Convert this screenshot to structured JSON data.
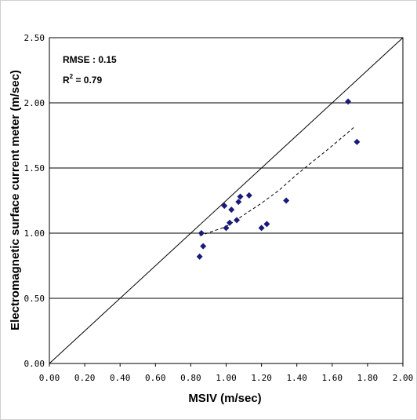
{
  "chart_data": {
    "type": "scatter",
    "title": "",
    "xlabel": "MSIV (m/sec)",
    "ylabel": "Electromagnetic surface current meter (m/sec)",
    "xlim": [
      0,
      2
    ],
    "ylim": [
      0,
      2.5
    ],
    "x_ticks": [
      "0.00",
      "0.20",
      "0.40",
      "0.60",
      "0.80",
      "1.00",
      "1.20",
      "1.40",
      "1.60",
      "1.80",
      "2.00"
    ],
    "y_ticks": [
      "0.00",
      "0.50",
      "1.00",
      "1.50",
      "2.00",
      "2.50"
    ],
    "grid": "horizontal",
    "marker_color": "#1a1a7a",
    "points": [
      {
        "x": 0.85,
        "y": 0.82
      },
      {
        "x": 0.86,
        "y": 1.0
      },
      {
        "x": 0.87,
        "y": 0.9
      },
      {
        "x": 0.99,
        "y": 1.21
      },
      {
        "x": 1.0,
        "y": 1.04
      },
      {
        "x": 1.02,
        "y": 1.08
      },
      {
        "x": 1.03,
        "y": 1.18
      },
      {
        "x": 1.06,
        "y": 1.1
      },
      {
        "x": 1.07,
        "y": 1.24
      },
      {
        "x": 1.08,
        "y": 1.28
      },
      {
        "x": 1.13,
        "y": 1.29
      },
      {
        "x": 1.2,
        "y": 1.04
      },
      {
        "x": 1.23,
        "y": 1.07
      },
      {
        "x": 1.34,
        "y": 1.25
      },
      {
        "x": 1.69,
        "y": 2.01
      },
      {
        "x": 1.74,
        "y": 1.7
      }
    ],
    "reference_line": {
      "style": "solid",
      "from": [
        0,
        0
      ],
      "to": [
        2,
        2.5
      ]
    },
    "trend_line": {
      "style": "dashed",
      "points": [
        [
          0.85,
          0.98
        ],
        [
          1.0,
          1.05
        ],
        [
          1.1,
          1.14
        ],
        [
          1.2,
          1.23
        ],
        [
          1.3,
          1.33
        ],
        [
          1.4,
          1.45
        ],
        [
          1.5,
          1.56
        ],
        [
          1.6,
          1.67
        ],
        [
          1.73,
          1.82
        ]
      ]
    },
    "annotations": {
      "rmse": "RMSE : 0.15",
      "r2_prefix": "R",
      "r2_sup": "2",
      "r2_value": " = 0.79"
    }
  }
}
